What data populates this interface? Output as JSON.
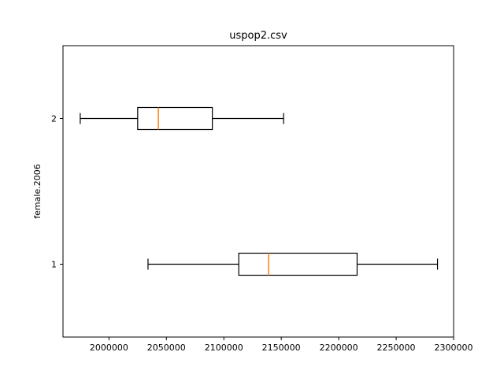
{
  "chart_data": {
    "type": "boxplot",
    "orientation": "horizontal",
    "title": "uspop2.csv",
    "xlabel": "",
    "ylabel": "female.2006",
    "xlim": [
      1960000,
      2300000
    ],
    "xticks": [
      2000000,
      2050000,
      2100000,
      2150000,
      2200000,
      2250000,
      2300000
    ],
    "categories": [
      "1",
      "2"
    ],
    "boxes": [
      {
        "label": "1",
        "whisker_low": 2034000,
        "q1": 2113000,
        "median": 2139000,
        "q3": 2216000,
        "whisker_high": 2286000
      },
      {
        "label": "2",
        "whisker_low": 1975000,
        "q1": 2025000,
        "median": 2043000,
        "q3": 2090000,
        "whisker_high": 2152000
      }
    ],
    "median_color": "#ff7f0e",
    "box_color": "#000000",
    "grid": false
  }
}
